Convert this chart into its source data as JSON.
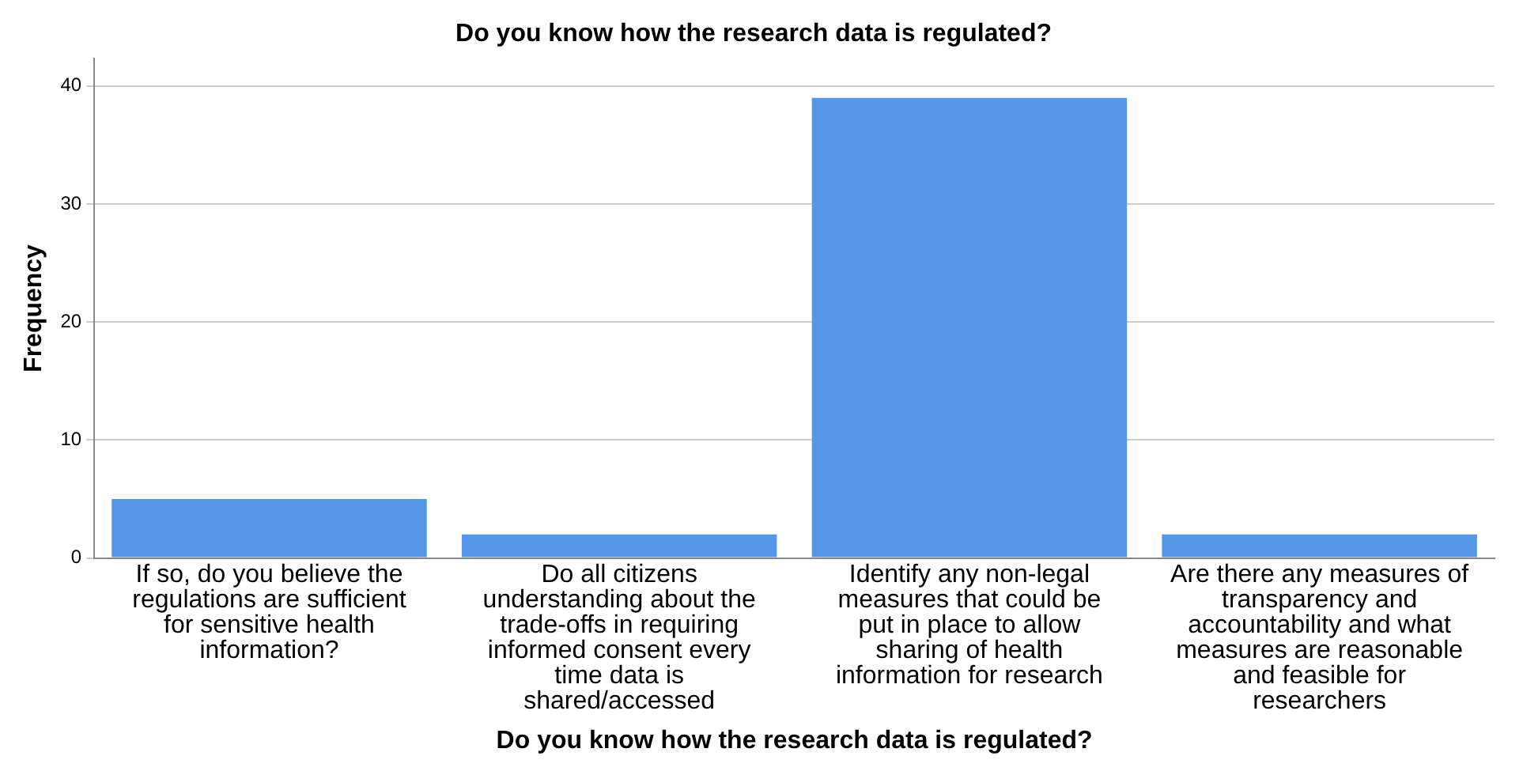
{
  "chart_data": {
    "type": "bar",
    "title": "Do you know how the research data is regulated?",
    "xlabel": "Do you know how the research data is regulated?",
    "ylabel": "Frequency",
    "categories": [
      "If so, do you believe the regulations are sufficient for sensitive health information?",
      "Do all citizens understanding about the trade-offs in requiring informed consent every time data is shared/accessed",
      "Identify any non-legal measures that could be put in place to allow sharing of health information for research",
      "Are there any measures of transparency and accountability and what measures are reasonable and feasible for researchers"
    ],
    "values": [
      5,
      2,
      39,
      2
    ],
    "color": "#5596e6",
    "ylim": [
      0,
      42.3
    ],
    "yticks": [
      0,
      10,
      20,
      30,
      40
    ],
    "grid": "y",
    "legend": false
  }
}
